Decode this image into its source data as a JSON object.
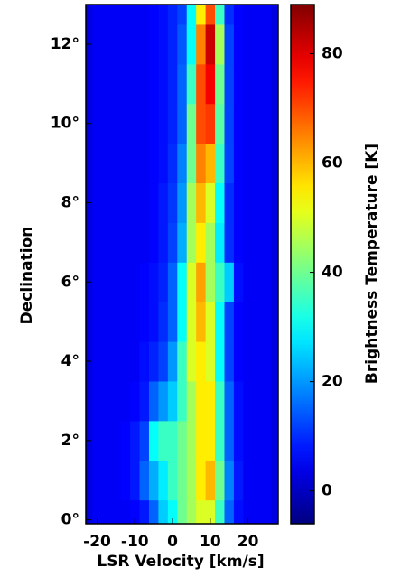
{
  "chart_data": {
    "type": "heatmap",
    "xlabel": "LSR Velocity [km/s]",
    "ylabel": "Declination",
    "colorbar_label": "Brightness Temperature [K]",
    "colormap": "jet",
    "x": [
      -22.5,
      -20,
      -17.5,
      -15,
      -12.5,
      -10,
      -7.5,
      -5,
      -2.5,
      0,
      2.5,
      5,
      7.5,
      10,
      12.5,
      15,
      17.5,
      20,
      22.5,
      25,
      27.5
    ],
    "y": [
      0,
      1,
      2,
      3,
      4,
      5,
      6,
      7,
      8,
      9,
      10,
      11,
      12,
      13
    ],
    "z": [
      [
        3,
        5,
        5,
        5,
        5,
        6,
        8,
        15,
        25,
        30,
        40,
        45,
        50,
        50,
        35,
        15,
        7,
        5,
        5,
        5,
        3
      ],
      [
        3,
        5,
        5,
        5,
        6,
        8,
        15,
        22,
        28,
        35,
        40,
        45,
        55,
        60,
        40,
        18,
        8,
        5,
        5,
        5,
        3
      ],
      [
        3,
        5,
        5,
        5,
        6,
        8,
        12,
        30,
        35,
        35,
        40,
        45,
        55,
        55,
        35,
        15,
        7,
        5,
        5,
        5,
        3
      ],
      [
        3,
        5,
        5,
        5,
        5,
        6,
        8,
        15,
        20,
        25,
        35,
        45,
        55,
        55,
        35,
        15,
        7,
        5,
        5,
        5,
        3
      ],
      [
        3,
        5,
        5,
        5,
        5,
        5,
        7,
        9,
        12,
        20,
        35,
        50,
        55,
        50,
        30,
        12,
        6,
        5,
        5,
        5,
        3
      ],
      [
        3,
        5,
        5,
        5,
        5,
        5,
        6,
        7,
        10,
        15,
        30,
        50,
        60,
        50,
        30,
        12,
        6,
        5,
        5,
        5,
        3
      ],
      [
        3,
        5,
        5,
        5,
        5,
        5,
        6,
        7,
        9,
        15,
        30,
        50,
        62,
        45,
        35,
        25,
        7,
        5,
        5,
        5,
        3
      ],
      [
        3,
        5,
        5,
        5,
        5,
        5,
        5,
        6,
        8,
        12,
        22,
        45,
        55,
        45,
        28,
        10,
        6,
        5,
        5,
        5,
        3
      ],
      [
        3,
        5,
        5,
        5,
        5,
        5,
        5,
        6,
        8,
        11,
        20,
        45,
        60,
        50,
        30,
        10,
        6,
        5,
        5,
        5,
        3
      ],
      [
        3,
        5,
        5,
        5,
        5,
        5,
        5,
        6,
        7,
        10,
        18,
        40,
        65,
        60,
        35,
        12,
        6,
        5,
        5,
        5,
        3
      ],
      [
        3,
        5,
        5,
        5,
        5,
        5,
        5,
        6,
        7,
        9,
        15,
        40,
        70,
        72,
        38,
        12,
        6,
        5,
        5,
        5,
        3
      ],
      [
        3,
        5,
        5,
        5,
        5,
        5,
        5,
        6,
        7,
        9,
        15,
        35,
        70,
        78,
        40,
        12,
        6,
        5,
        5,
        5,
        3
      ],
      [
        3,
        5,
        5,
        5,
        5,
        5,
        5,
        6,
        7,
        9,
        14,
        30,
        65,
        82,
        45,
        12,
        6,
        5,
        5,
        5,
        3
      ],
      [
        3,
        5,
        5,
        5,
        5,
        5,
        5,
        6,
        7,
        9,
        12,
        30,
        55,
        70,
        35,
        10,
        6,
        5,
        5,
        5,
        3
      ]
    ],
    "xlim": [
      -23,
      28
    ],
    "ylim": [
      -0.1,
      13
    ],
    "clim": [
      -6,
      89
    ],
    "xticks": [
      -20,
      -10,
      0,
      10,
      20
    ],
    "yticks": [
      {
        "value": 0,
        "label": "0°"
      },
      {
        "value": 2,
        "label": "2°"
      },
      {
        "value": 4,
        "label": "4°"
      },
      {
        "value": 6,
        "label": "6°"
      },
      {
        "value": 8,
        "label": "8°"
      },
      {
        "value": 10,
        "label": "10°"
      },
      {
        "value": 12,
        "label": "12°"
      }
    ],
    "cticks": [
      0,
      20,
      40,
      60,
      80
    ]
  }
}
